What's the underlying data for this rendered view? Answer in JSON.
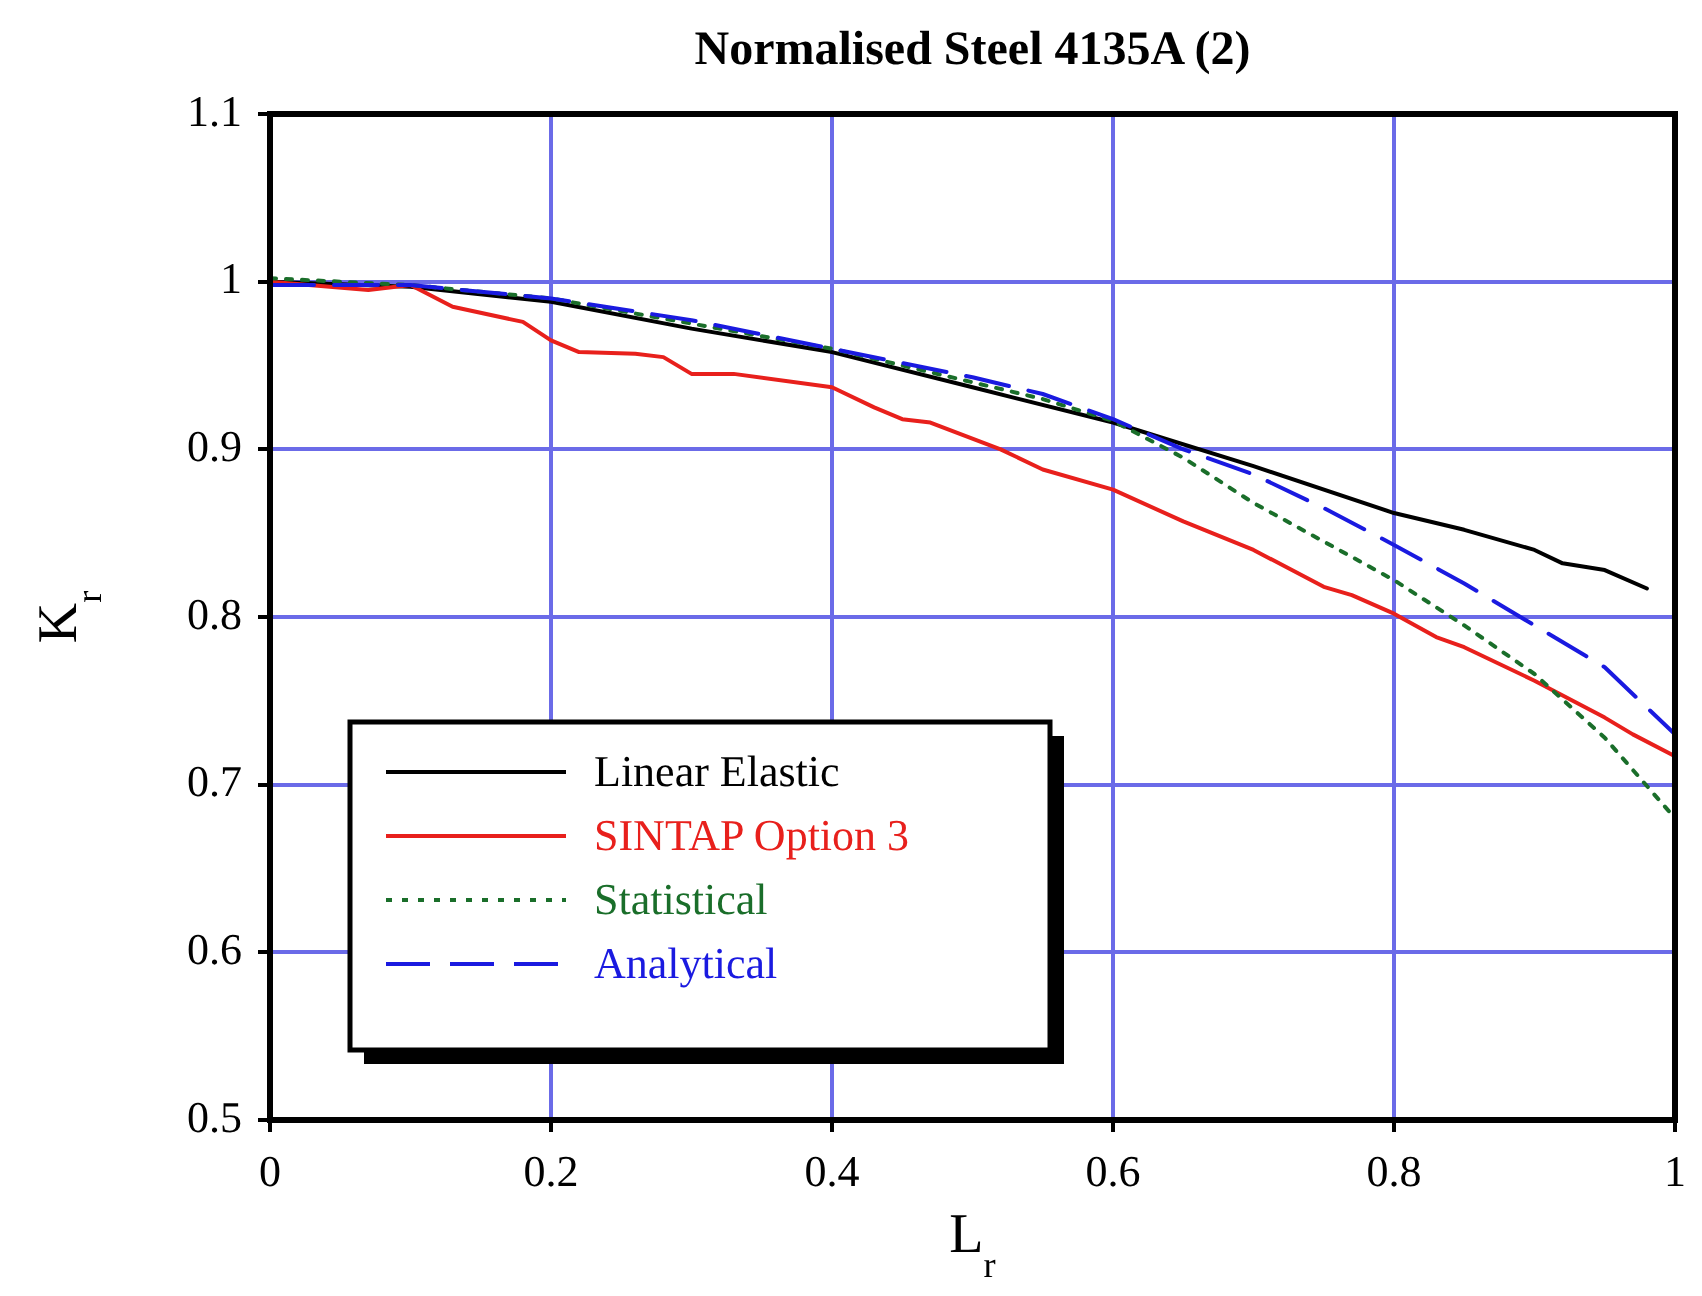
{
  "chart_data": {
    "type": "line",
    "title": "Normalised Steel 4135A (2)",
    "xlabel": "L$_{r}$",
    "ylabel": "K$_{r}$",
    "xlim": [
      0,
      1
    ],
    "xticks": [
      0,
      0.2,
      0.4,
      0.6,
      0.8,
      1
    ],
    "ylim": [
      0.5,
      1.1
    ],
    "yticks": [
      0.5,
      0.6,
      0.7,
      0.8,
      0.9,
      1,
      1.1
    ],
    "grid": true,
    "legend": "bottom left",
    "marker": "none",
    "series": [
      {
        "name": "Linear Elastic",
        "color": "#000000",
        "line_style": "solid",
        "x": [
          0,
          0.1,
          0.2,
          0.3,
          0.4,
          0.5,
          0.6,
          0.7,
          0.8,
          0.85,
          0.9,
          0.92,
          0.95,
          0.98
        ],
        "values": [
          1.0,
          0.997,
          0.988,
          0.972,
          0.958,
          0.937,
          0.916,
          0.89,
          0.862,
          0.852,
          0.84,
          0.832,
          0.828,
          0.817
        ]
      },
      {
        "name": "SINTAP Option 3",
        "color": "#e8201c",
        "line_style": "solid",
        "x": [
          0,
          0.07,
          0.1,
          0.13,
          0.18,
          0.2,
          0.22,
          0.26,
          0.28,
          0.3,
          0.33,
          0.4,
          0.43,
          0.45,
          0.47,
          0.52,
          0.55,
          0.6,
          0.65,
          0.7,
          0.75,
          0.77,
          0.8,
          0.83,
          0.85,
          0.9,
          0.95,
          0.97,
          1.0
        ],
        "values": [
          1.0,
          0.995,
          0.998,
          0.985,
          0.976,
          0.965,
          0.958,
          0.957,
          0.955,
          0.945,
          0.945,
          0.937,
          0.925,
          0.918,
          0.916,
          0.9,
          0.888,
          0.876,
          0.857,
          0.84,
          0.818,
          0.813,
          0.802,
          0.788,
          0.782,
          0.762,
          0.74,
          0.73,
          0.717
        ]
      },
      {
        "name": "Statistical",
        "color": "#1a6e2a",
        "line_style": "dotted",
        "x": [
          0,
          0.1,
          0.2,
          0.3,
          0.4,
          0.5,
          0.55,
          0.6,
          0.65,
          0.7,
          0.75,
          0.8,
          0.85,
          0.9,
          0.95,
          1.0
        ],
        "values": [
          1.002,
          0.998,
          0.99,
          0.975,
          0.96,
          0.94,
          0.93,
          0.917,
          0.895,
          0.868,
          0.845,
          0.822,
          0.795,
          0.766,
          0.728,
          0.68
        ]
      },
      {
        "name": "Analytical",
        "color": "#1a1ae0",
        "line_style": "dashed",
        "x": [
          0,
          0.1,
          0.2,
          0.3,
          0.4,
          0.5,
          0.55,
          0.6,
          0.65,
          0.7,
          0.75,
          0.8,
          0.85,
          0.9,
          0.95,
          1.0
        ],
        "values": [
          0.998,
          0.998,
          0.99,
          0.977,
          0.96,
          0.943,
          0.933,
          0.918,
          0.9,
          0.885,
          0.865,
          0.843,
          0.82,
          0.795,
          0.77,
          0.73
        ]
      }
    ]
  }
}
